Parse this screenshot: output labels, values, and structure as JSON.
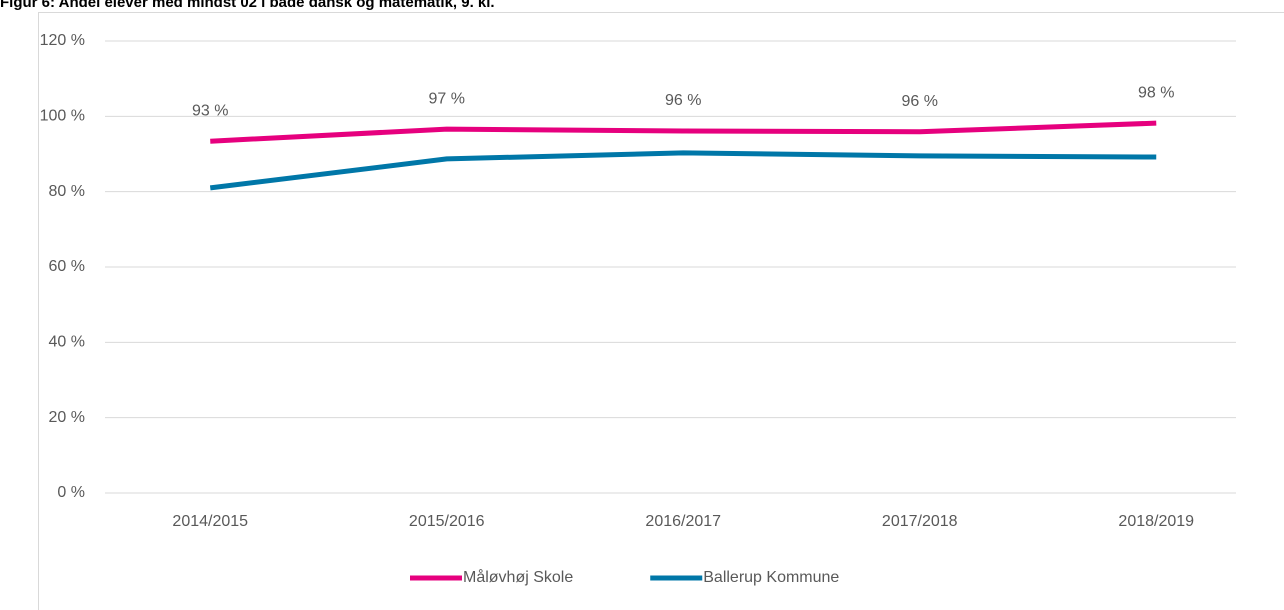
{
  "chart_data": {
    "type": "line",
    "title": "Figur 6: Andel elever med mindst 02 i både dansk og matematik, 9. kl.",
    "categories": [
      "2014/2015",
      "2015/2016",
      "2016/2017",
      "2017/2018",
      "2018/2019"
    ],
    "series": [
      {
        "name": "Måløvhøj Skole",
        "color": "#e6007e",
        "values": [
          93.4,
          96.6,
          96.1,
          95.9,
          98.2
        ],
        "value_labels": [
          "93 %",
          "97 %",
          "96 %",
          "96 %",
          "98 %"
        ]
      },
      {
        "name": "Ballerup Kommune",
        "color": "#0077a8",
        "values": [
          81.0,
          88.7,
          90.3,
          89.5,
          89.2
        ]
      }
    ],
    "ylim": [
      0,
      120
    ],
    "yticks": [
      {
        "value": 0,
        "label": "0 %"
      },
      {
        "value": 20,
        "label": "20 %"
      },
      {
        "value": 40,
        "label": "40 %"
      },
      {
        "value": 60,
        "label": "60 %"
      },
      {
        "value": 80,
        "label": "80 %"
      },
      {
        "value": 100,
        "label": "100 %"
      },
      {
        "value": 120,
        "label": "120 %"
      }
    ],
    "grid": true,
    "legend": "bottom"
  }
}
